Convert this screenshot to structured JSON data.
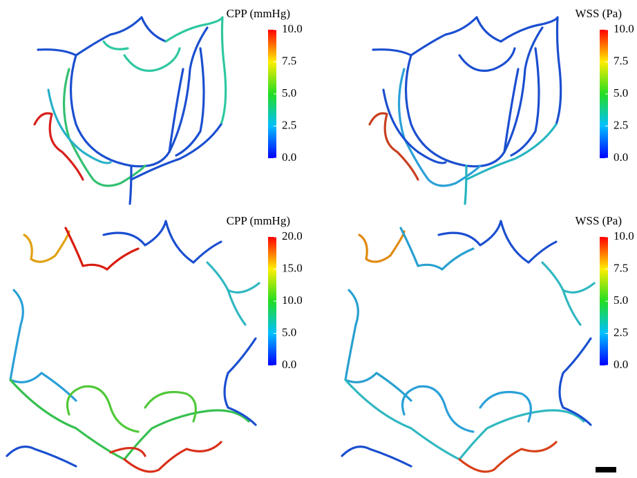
{
  "panels": [
    {
      "colorbar": {
        "title": "CPP (mmHg)",
        "lim": [
          0,
          10
        ],
        "ticks": [
          {
            "value": 10,
            "label": "10.0"
          },
          {
            "value": 7.5,
            "label": "7.5"
          },
          {
            "value": 5,
            "label": "5.0"
          },
          {
            "value": 2.5,
            "label": "2.5"
          },
          {
            "value": 0,
            "label": "0.0"
          }
        ]
      }
    },
    {
      "colorbar": {
        "title": "WSS (Pa)",
        "lim": [
          0,
          10
        ],
        "ticks": [
          {
            "value": 10,
            "label": "10.0"
          },
          {
            "value": 7.5,
            "label": "7.5"
          },
          {
            "value": 5,
            "label": "5.0"
          },
          {
            "value": 2.5,
            "label": "2.5"
          },
          {
            "value": 0,
            "label": "0.0"
          }
        ]
      }
    },
    {
      "colorbar": {
        "title": "CPP (mmHg)",
        "lim": [
          0,
          20
        ],
        "ticks": [
          {
            "value": 20,
            "label": "20.0"
          },
          {
            "value": 15,
            "label": "15.0"
          },
          {
            "value": 10,
            "label": "10.0"
          },
          {
            "value": 5,
            "label": "5.0"
          },
          {
            "value": 0,
            "label": "0.0"
          }
        ]
      }
    },
    {
      "colorbar": {
        "title": "WSS (Pa)",
        "lim": [
          0,
          10
        ],
        "ticks": [
          {
            "value": 10,
            "label": "10.0"
          },
          {
            "value": 7.5,
            "label": "7.5"
          },
          {
            "value": 5,
            "label": "5.0"
          },
          {
            "value": 2.5,
            "label": "2.5"
          },
          {
            "value": 0,
            "label": "0.0"
          }
        ]
      }
    }
  ]
}
